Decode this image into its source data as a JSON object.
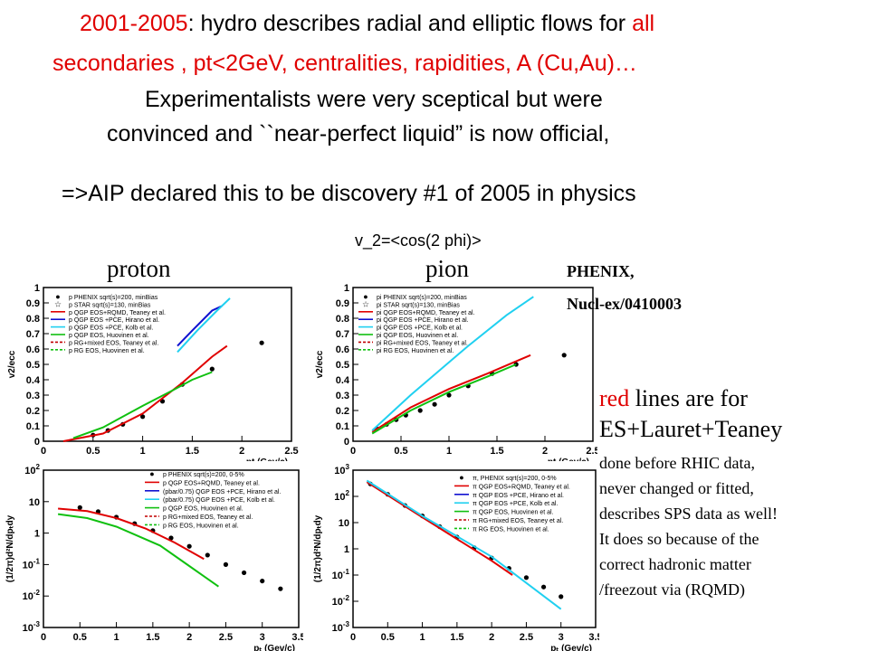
{
  "colors": {
    "accent_red": "#e00000",
    "dark_red": "#c00000",
    "blue": "#1010d0",
    "cyan": "#20d0f0",
    "green": "#10c010"
  },
  "title": {
    "years": "2001-2005",
    "sep": ": hydro describes radial and elliptic flows for ",
    "all": "all",
    "line2": "secondaries , pt<2GeV, centralities, rapidities, A (Cu,Au)…",
    "line3": "Experimentalists were very sceptical but were",
    "line4": "convinced and ``near-perfect liquid” is now official,",
    "line5": "=>AIP declared this to be discovery #1 of 2005 in physics"
  },
  "subtitle": "v_2=<cos(2 phi)>",
  "labels": {
    "proton": "proton",
    "pion": "pion"
  },
  "reference": {
    "l1": "PHENIX,",
    "l2": "Nucl-ex/0410003"
  },
  "note": {
    "red_word": "red",
    "rest": " lines are for",
    "l2": "ES+Lauret+Teaney",
    "l3": "done before RHIC data,",
    "l4": "never changed or fitted,",
    "l5": "describes SPS data as well!",
    "l6": "It does so because of the",
    "l7": "correct hadronic matter",
    "l8": "/freezout via (RQMD)"
  },
  "v2_axes": {
    "ylabel": "v2/ecc",
    "xlabel": "pt (Gev/c)",
    "xticks": [
      "0",
      "0.5",
      "1",
      "1.5",
      "2",
      "2.5"
    ],
    "yticks": [
      "0",
      "0.1",
      "0.2",
      "0.3",
      "0.4",
      "0.5",
      "0.6",
      "0.7",
      "0.8",
      "0.9",
      "1"
    ]
  },
  "sp_axes": {
    "ylabel": "(1/2π)d²N/dpₜdy",
    "xlabel": "pₜ (Gev/c)",
    "xticks": [
      "0",
      "0.5",
      "1",
      "1.5",
      "2",
      "2.5",
      "3",
      "3.5"
    ]
  },
  "legends": {
    "proton_v2": [
      "p PHENIX sqrt(s)=200, minBias",
      "p STAR sqrt(s)=130, minBias",
      "p  QGP EOS+RQMD, Teaney et al.",
      "p  QGP EOS +PCE, Hirano et al.",
      "p  QGP EOS +PCE, Kolb et al.",
      "p  QGP EOS, Huovinen et al.",
      "p  RG+mixed EOS, Teaney et al.",
      "p  RG EOS, Huovinen et al."
    ],
    "pion_v2": [
      "pi PHENIX sqrt(s)=200, minBias",
      "pi STAR sqrt(s)=130, minBias",
      "pi  QGP EOS+RQMD, Teaney et al.",
      "pi  QGP EOS +PCE, Hirano et al.",
      "pi  QGP EOS +PCE, Kolb et al.",
      "pi  QGP EOS, Huovinen et al.",
      "pi  RG+mixed EOS, Teaney et al.",
      "pi  RG EOS, Huovinen et al."
    ],
    "proton_sp": [
      "p PHENIX sqrt(s)=200, 0-5%",
      "p QGP EOS+RQMD, Teaney et al.",
      "(pbar/0.75) QGP EOS +PCE, Hirano et al.",
      "(pbar/0.75) QGP EOS +PCE, Kolb et al.",
      "p QGP EOS, Huovinen et al.",
      "p RG+mixed EOS, Teaney et al.",
      "p RG EOS, Huovinen et al."
    ],
    "pion_sp": [
      "π, PHENIX sqrt(s)=200, 0-5%",
      "π QGP EOS+RQMD, Teaney et al.",
      "π QGP EOS +PCE, Hirano et al.",
      "π QGP EOS +PCE, Kolb et al.",
      "π QGP EOS, Huovinen et al.",
      "π RG+mixed EOS, Teaney et al.",
      "π RG EOS, Huovinen et al."
    ]
  },
  "chart_data": [
    {
      "type": "line",
      "ylabel": "v2/ecc",
      "xlabel": "pt (Gev/c)",
      "xlim": [
        0,
        2.5
      ],
      "ylim": [
        0,
        1
      ],
      "series": [
        {
          "name": "p PHENIX sqrt(s)=200, minBias",
          "style": "points",
          "x": [
            0.5,
            0.65,
            0.8,
            1.0,
            1.2,
            1.4,
            1.7,
            2.2
          ],
          "y": [
            0.04,
            0.07,
            0.11,
            0.16,
            0.26,
            0.37,
            0.47,
            0.64
          ]
        },
        {
          "name": "p  QGP EOS+RQMD, Teaney et al.",
          "color": "#e00000",
          "x": [
            0.2,
            0.6,
            1.0,
            1.4,
            1.7,
            1.85
          ],
          "y": [
            0.0,
            0.05,
            0.18,
            0.38,
            0.55,
            0.62
          ]
        },
        {
          "name": "p  QGP EOS +PCE, Hirano et al.",
          "color": "#1010d0",
          "x": [
            1.35,
            1.5,
            1.7,
            1.8
          ],
          "y": [
            0.62,
            0.72,
            0.85,
            0.88
          ]
        },
        {
          "name": "p  QGP EOS +PCE, Kolb et al.",
          "color": "#20d0f0",
          "x": [
            1.35,
            1.55,
            1.75,
            1.88
          ],
          "y": [
            0.58,
            0.72,
            0.85,
            0.93
          ]
        },
        {
          "name": "p  QGP EOS, Huovinen et al.",
          "color": "#10c010",
          "x": [
            0.3,
            0.6,
            1.0,
            1.3,
            1.5,
            1.7
          ],
          "y": [
            0.02,
            0.09,
            0.23,
            0.33,
            0.4,
            0.45
          ]
        }
      ]
    },
    {
      "type": "line",
      "ylabel": "v2/ecc",
      "xlabel": "pt (Gev/c)",
      "xlim": [
        0,
        2.5
      ],
      "ylim": [
        0,
        1
      ],
      "series": [
        {
          "name": "pi PHENIX sqrt(s)=200, minBias",
          "style": "points",
          "x": [
            0.25,
            0.35,
            0.45,
            0.55,
            0.7,
            0.85,
            1.0,
            1.2,
            1.45,
            1.7,
            2.2
          ],
          "y": [
            0.08,
            0.11,
            0.14,
            0.17,
            0.2,
            0.24,
            0.3,
            0.36,
            0.44,
            0.5,
            0.56
          ]
        },
        {
          "name": "pi  QGP EOS+RQMD, Teaney et al.",
          "color": "#e00000",
          "x": [
            0.2,
            0.6,
            1.0,
            1.4,
            1.7,
            1.85
          ],
          "y": [
            0.06,
            0.22,
            0.34,
            0.44,
            0.52,
            0.56
          ]
        },
        {
          "name": "pi  QGP EOS +PCE, Kolb et al.",
          "color": "#20d0f0",
          "x": [
            0.2,
            0.6,
            1.2,
            1.6,
            1.88
          ],
          "y": [
            0.07,
            0.3,
            0.62,
            0.82,
            0.94
          ]
        },
        {
          "name": "pi  QGP EOS, Huovinen et al.",
          "color": "#10c010",
          "x": [
            0.2,
            0.6,
            1.0,
            1.4,
            1.7
          ],
          "y": [
            0.05,
            0.2,
            0.32,
            0.42,
            0.5
          ]
        }
      ]
    },
    {
      "type": "line",
      "ylabel": "(1/2π)d²N/dpₜdy",
      "xlabel": "pₜ (Gev/c)",
      "xlim": [
        0,
        3.5
      ],
      "ylim": [
        0.001,
        100
      ],
      "yscale": "log",
      "series": [
        {
          "name": "p PHENIX sqrt(s)=200, 0-5%",
          "style": "points",
          "x": [
            0.5,
            0.75,
            1.0,
            1.25,
            1.5,
            1.75,
            2.0,
            2.25,
            2.5,
            2.75,
            3.0,
            3.25
          ],
          "y": [
            6.5,
            4.8,
            3.2,
            2.0,
            1.2,
            0.7,
            0.38,
            0.2,
            0.1,
            0.055,
            0.03,
            0.017
          ]
        },
        {
          "name": "p QGP EOS+RQMD, Teaney et al.",
          "color": "#e00000",
          "x": [
            0.2,
            0.6,
            1.0,
            1.4,
            1.8,
            2.2
          ],
          "y": [
            6.0,
            5.0,
            3.0,
            1.4,
            0.5,
            0.15
          ]
        },
        {
          "name": "p QGP EOS, Huovinen et al.",
          "color": "#10c010",
          "x": [
            0.2,
            0.6,
            1.0,
            1.6,
            2.0,
            2.4
          ],
          "y": [
            4.0,
            3.0,
            1.6,
            0.4,
            0.09,
            0.02
          ]
        }
      ]
    },
    {
      "type": "line",
      "ylabel": "(1/2π)d²N/dpₜdy",
      "xlabel": "pₜ (Gev/c)",
      "xlim": [
        0,
        3.5
      ],
      "ylim": [
        0.001,
        1000
      ],
      "yscale": "log",
      "series": [
        {
          "name": "π, PHENIX sqrt(s)=200, 0-5%",
          "style": "points",
          "x": [
            0.25,
            0.5,
            0.75,
            1.0,
            1.25,
            1.5,
            1.75,
            2.0,
            2.25,
            2.5,
            2.75,
            3.0
          ],
          "y": [
            300,
            120,
            45,
            18,
            7,
            2.8,
            1.1,
            0.45,
            0.18,
            0.08,
            0.035,
            0.015
          ]
        },
        {
          "name": "π QGP EOS+RQMD, Teaney et al.",
          "color": "#e00000",
          "x": [
            0.2,
            1.0,
            2.0,
            2.3
          ],
          "y": [
            350,
            16,
            0.35,
            0.1
          ]
        },
        {
          "name": "π QGP EOS +PCE, Kolb et al.",
          "color": "#20d0f0",
          "x": [
            0.2,
            1.0,
            2.0,
            3.0
          ],
          "y": [
            400,
            18,
            0.5,
            0.005
          ]
        }
      ]
    }
  ]
}
